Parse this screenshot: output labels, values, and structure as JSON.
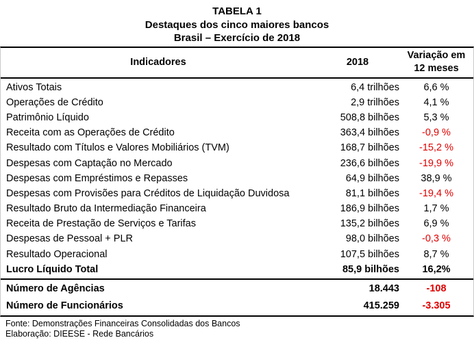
{
  "colors": {
    "background": "#ffffff",
    "text": "#000000",
    "negative": "#e00000",
    "rule": "#000000"
  },
  "title": {
    "line1": "TABELA 1",
    "line2": "Destaques dos cinco maiores bancos",
    "line3": "Brasil – Exercício de 2018"
  },
  "table": {
    "columns": {
      "indicators": "Indicadores",
      "year": "2018",
      "variation_line1": "Variação em",
      "variation_line2": "12 meses"
    },
    "rows": [
      {
        "label": "Ativos Totais",
        "value": "6,4 trilhões",
        "variation": "6,6 %",
        "negative": false,
        "bold": false
      },
      {
        "label": "Operações de Crédito",
        "value": "2,9 trilhões",
        "variation": "4,1 %",
        "negative": false,
        "bold": false
      },
      {
        "label": "Patrimônio Líquido",
        "value": "508,8 bilhões",
        "variation": "5,3 %",
        "negative": false,
        "bold": false
      },
      {
        "label": "Receita com as Operações de Crédito",
        "value": "363,4 bilhões",
        "variation": "-0,9 %",
        "negative": true,
        "bold": false
      },
      {
        "label": "Resultado com Títulos e Valores Mobiliários (TVM)",
        "value": "168,7 bilhões",
        "variation": "-15,2 %",
        "negative": true,
        "bold": false
      },
      {
        "label": "Despesas com Captação no Mercado",
        "value": "236,6 bilhões",
        "variation": "-19,9 %",
        "negative": true,
        "bold": false
      },
      {
        "label": "Despesas com Empréstimos e Repasses",
        "value": "64,9 bilhões",
        "variation": "38,9 %",
        "negative": false,
        "bold": false
      },
      {
        "label": "Despesas com Provisões para Créditos de Liquidação Duvidosa",
        "value": "81,1 bilhões",
        "variation": "-19,4 %",
        "negative": true,
        "bold": false
      },
      {
        "label": "Resultado Bruto da Intermediação Financeira",
        "value": "186,9 bilhões",
        "variation": "1,7 %",
        "negative": false,
        "bold": false
      },
      {
        "label": "Receita de Prestação de Serviços e Tarifas",
        "value": "135,2 bilhões",
        "variation": "6,9 %",
        "negative": false,
        "bold": false
      },
      {
        "label": "Despesas de Pessoal + PLR",
        "value": "98,0 bilhões",
        "variation": "-0,3 %",
        "negative": true,
        "bold": false
      },
      {
        "label": "Resultado Operacional",
        "value": "107,5 bilhões",
        "variation": "8,7 %",
        "negative": false,
        "bold": false
      },
      {
        "label": "Lucro Líquido Total",
        "value": "85,9 bilhões",
        "variation": "16,2%",
        "negative": false,
        "bold": true
      }
    ],
    "summary_rows": [
      {
        "label": "Número de Agências",
        "value": "18.443",
        "variation": "-108",
        "negative": true,
        "bold": true
      },
      {
        "label": "Número de Funcionários",
        "value": "415.259",
        "variation": "-3.305",
        "negative": true,
        "bold": true
      }
    ]
  },
  "footer": {
    "source": "Fonte: Demonstrações Financeiras Consolidadas dos Bancos",
    "elaboration": "Elaboração: DIEESE - Rede Bancários"
  },
  "chart_data": {
    "type": "table",
    "title": "TABELA 1",
    "subtitle": "Destaques dos cinco maiores bancos",
    "subtitle2": "Brasil – Exercício de 2018",
    "columns": [
      "Indicadores",
      "2018",
      "Variação em 12 meses"
    ],
    "rows": [
      [
        "Ativos Totais",
        "6,4 trilhões",
        "6,6 %"
      ],
      [
        "Operações de Crédito",
        "2,9 trilhões",
        "4,1 %"
      ],
      [
        "Patrimônio Líquido",
        "508,8 bilhões",
        "5,3 %"
      ],
      [
        "Receita com as Operações de Crédito",
        "363,4 bilhões",
        "-0,9 %"
      ],
      [
        "Resultado com Títulos e Valores Mobiliários (TVM)",
        "168,7 bilhões",
        "-15,2 %"
      ],
      [
        "Despesas com Captação no Mercado",
        "236,6 bilhões",
        "-19,9 %"
      ],
      [
        "Despesas com Empréstimos e Repasses",
        "64,9 bilhões",
        "38,9 %"
      ],
      [
        "Despesas com Provisões para Créditos de Liquidação Duvidosa",
        "81,1 bilhões",
        "-19,4 %"
      ],
      [
        "Resultado Bruto da Intermediação Financeira",
        "186,9 bilhões",
        "1,7 %"
      ],
      [
        "Receita de Prestação de Serviços e Tarifas",
        "135,2 bilhões",
        "6,9 %"
      ],
      [
        "Despesas de Pessoal + PLR",
        "98,0 bilhões",
        "-0,3 %"
      ],
      [
        "Resultado Operacional",
        "107,5 bilhões",
        "8,7 %"
      ],
      [
        "Lucro Líquido Total",
        "85,9 bilhões",
        "16,2%"
      ],
      [
        "Número de Agências",
        "18.443",
        "-108"
      ],
      [
        "Número de Funcionários",
        "415.259",
        "-3.305"
      ]
    ],
    "notes": [
      "Fonte: Demonstrações Financeiras Consolidadas dos Bancos",
      "Elaboração: DIEESE - Rede Bancários"
    ]
  }
}
